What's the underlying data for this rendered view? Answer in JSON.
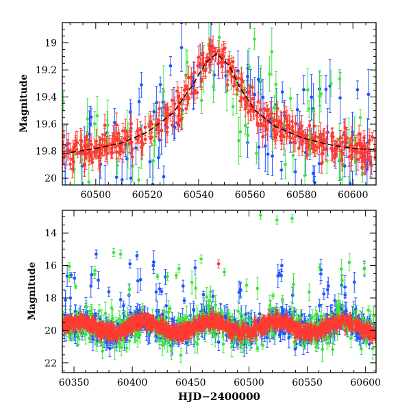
{
  "chart_data": [
    {
      "type": "scatter",
      "title": "",
      "xlabel": "",
      "ylabel": "Magnitude",
      "xlim": [
        60487,
        60609
      ],
      "ylim": [
        20.05,
        18.85
      ],
      "y_inverted": true,
      "xticks": [
        60500,
        60520,
        60540,
        60560,
        60580,
        60600
      ],
      "yticks": [
        19,
        19.2,
        19.4,
        19.6,
        19.8,
        20
      ],
      "ytick_labels": [
        "19",
        "19.2",
        "19.4",
        "19.6",
        "19.8",
        "20"
      ],
      "grid": false,
      "legend": "none",
      "series_colors": [
        "#1f55ff",
        "#3ee63e",
        "#ff3a30"
      ],
      "model_curve": {
        "color": "#000000",
        "style": "dashed",
        "x": [
          60487,
          60500,
          60510,
          60520,
          60530,
          60538,
          60543,
          60547,
          60552,
          60556,
          60562,
          60570,
          60580,
          60590,
          60600,
          60609
        ],
        "y": [
          19.82,
          19.78,
          19.74,
          19.66,
          19.52,
          19.3,
          19.14,
          19.08,
          19.17,
          19.33,
          19.5,
          19.62,
          19.7,
          19.75,
          19.78,
          19.79
        ]
      }
    },
    {
      "type": "scatter",
      "title": "",
      "xlabel": "HJD−2400000",
      "ylabel": "Magnitude",
      "xlim": [
        60340,
        60609
      ],
      "ylim": [
        22.6,
        12.6
      ],
      "y_inverted": true,
      "xticks": [
        60350,
        60400,
        60450,
        60500,
        60550,
        60600
      ],
      "yticks": [
        14,
        16,
        18,
        20,
        22
      ],
      "ytick_labels": [
        "14",
        "16",
        "18",
        "20",
        "22"
      ],
      "grid": false,
      "legend": "none",
      "series_colors": [
        "#1f55ff",
        "#3ee63e",
        "#ff3a30"
      ],
      "outliers": [
        {
          "x": 60510,
          "y": 12.9,
          "color": "#3ee63e"
        },
        {
          "x": 60524,
          "y": 13.2,
          "color": "#3ee63e"
        },
        {
          "x": 60537,
          "y": 13.1,
          "color": "#3ee63e"
        },
        {
          "x": 60369,
          "y": 15.3,
          "color": "#1f55ff"
        },
        {
          "x": 60384,
          "y": 15.2,
          "color": "#3ee63e"
        },
        {
          "x": 60390,
          "y": 15.3,
          "color": "#3ee63e"
        },
        {
          "x": 60404,
          "y": 15.4,
          "color": "#1f55ff"
        },
        {
          "x": 60459,
          "y": 15.6,
          "color": "#3ee63e"
        },
        {
          "x": 60474,
          "y": 15.9,
          "color": "#ff3a30"
        },
        {
          "x": 60368,
          "y": 16.3,
          "color": "#3ee63e"
        },
        {
          "x": 60398,
          "y": 15.9,
          "color": "#1f55ff"
        },
        {
          "x": 60418,
          "y": 16.0,
          "color": "#1f55ff"
        },
        {
          "x": 60440,
          "y": 16.2,
          "color": "#3ee63e"
        }
      ]
    }
  ]
}
